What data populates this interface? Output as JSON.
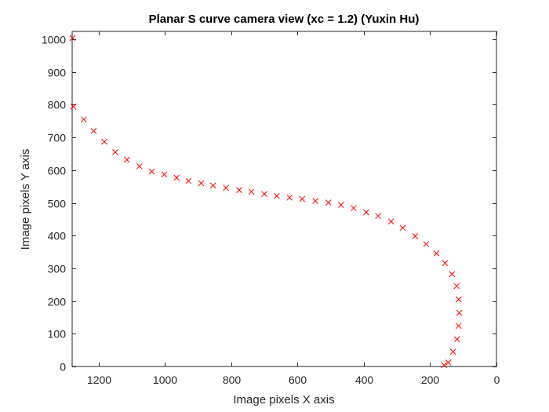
{
  "chart_data": {
    "type": "scatter",
    "title": "Planar S curve camera view (xc = 1.2) (Yuxin Hu)",
    "xlabel": "Image pixels X axis",
    "ylabel": "Image pixels Y axis",
    "xlim": [
      0,
      1280
    ],
    "ylim": [
      0,
      1024
    ],
    "x_reversed": true,
    "xticks": [
      1200,
      1000,
      800,
      600,
      400,
      200,
      0
    ],
    "yticks": [
      0,
      100,
      200,
      300,
      400,
      500,
      600,
      700,
      800,
      900,
      1000
    ],
    "grid": false,
    "marker": "x",
    "marker_color": "#ff0000",
    "series": [
      {
        "x": [
          1279,
          1276,
          1245,
          1215,
          1183,
          1150,
          1115,
          1077,
          1040,
          1002,
          965,
          929,
          891,
          855,
          816,
          776,
          739,
          700,
          663,
          624,
          586,
          546,
          507,
          469,
          431,
          393,
          357,
          318,
          283,
          245,
          212,
          181,
          155,
          134,
          120,
          114,
          112,
          114,
          119,
          131,
          145,
          158
        ],
        "y": [
          1004,
          794,
          755,
          720,
          687,
          655,
          632,
          612,
          596,
          587,
          577,
          567,
          560,
          553,
          546,
          539,
          534,
          527,
          521,
          516,
          512,
          506,
          501,
          494,
          484,
          471,
          460,
          443,
          424,
          398,
          374,
          346,
          316,
          282,
          246,
          205,
          164,
          124,
          83,
          45,
          12,
          4
        ]
      }
    ]
  }
}
